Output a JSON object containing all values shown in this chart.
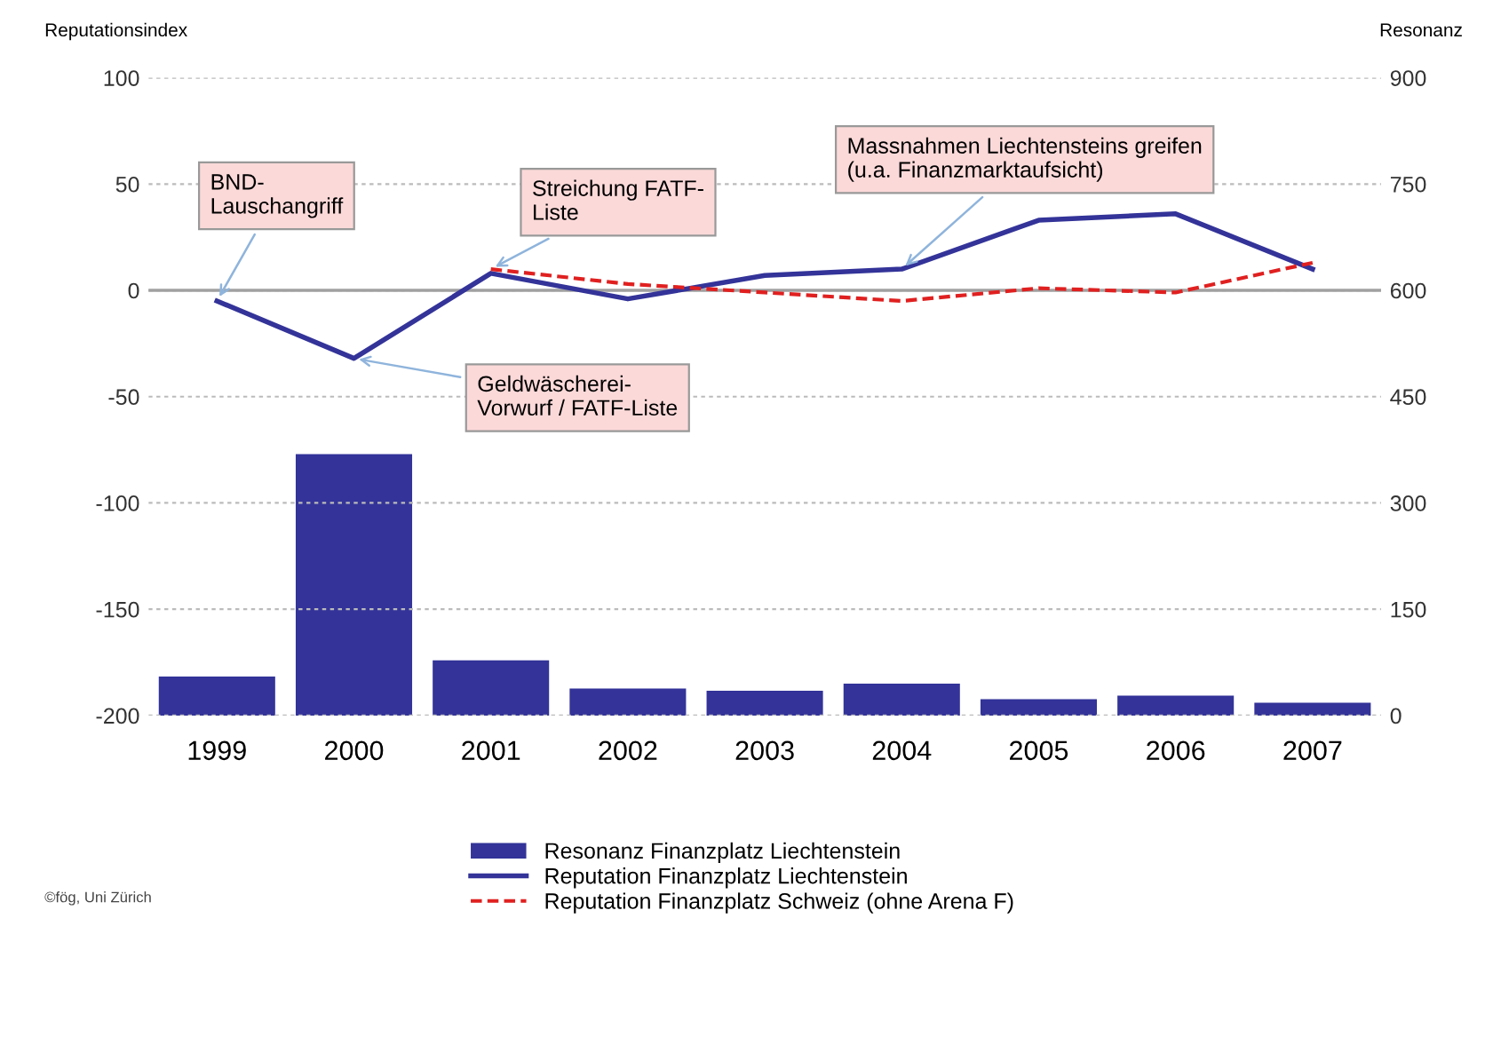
{
  "chart_data": {
    "type": "line",
    "ylabel": "Reputationsindex",
    "y2label": "Resonanz",
    "categories": [
      "1999",
      "2000",
      "2001",
      "2002",
      "2003",
      "2004",
      "2005",
      "2006",
      "2007"
    ],
    "series": [
      {
        "name": "Resonanz Finanzplatz Liechtenstein",
        "type": "bar",
        "axis": "y2",
        "color": "#333399",
        "values": [
          55,
          369,
          78,
          38,
          35,
          45,
          23,
          28,
          18
        ]
      },
      {
        "name": "Reputation Finanzplatz Liechtenstein",
        "color": "#333399",
        "line_style": "solid",
        "values": [
          -5,
          -32,
          8,
          -4,
          7,
          10,
          33,
          36,
          10
        ]
      },
      {
        "name": "Reputation Finanzplatz Schweiz (ohne Arena F)",
        "color": "#e02020",
        "line_style": "dashed",
        "values": [
          null,
          null,
          10,
          3,
          -1,
          -5,
          1,
          -1,
          13
        ]
      }
    ],
    "ylim": [
      -200,
      100
    ],
    "yticks": [
      -200,
      -150,
      -100,
      -50,
      0,
      50,
      100
    ],
    "y2lim": [
      0,
      900
    ],
    "y2ticks": [
      0,
      150,
      300,
      450,
      600,
      750,
      900
    ],
    "grid": "y",
    "legend": "bottom",
    "ref_lines": [
      {
        "axis": "y",
        "value": 0,
        "color": "#a0a0a0"
      }
    ],
    "annotations": [
      {
        "text": "BND-\nLauschangriff",
        "x": "1999",
        "y": -5
      },
      {
        "text": "Streichung FATF-\nListe",
        "x": "2001",
        "y": 10
      },
      {
        "text": "Geldwäscherei-\nVorwurf / FATF-Liste",
        "x": "2000",
        "y": -32
      },
      {
        "text": "Massnahmen Liechtensteins greifen\n(u.a. Finanzmarktaufsicht)",
        "x": "2004",
        "y": 10
      },
      "©fög, Uni Zürich"
    ]
  }
}
